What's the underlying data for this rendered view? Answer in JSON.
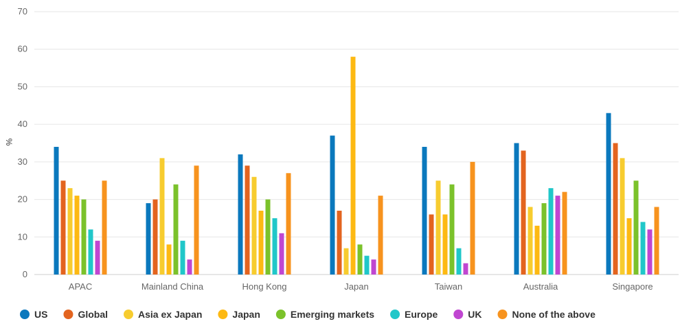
{
  "chart_data": {
    "type": "bar",
    "title": "",
    "xlabel": "",
    "ylabel": "%",
    "ylim": [
      0,
      70
    ],
    "yticks": [
      0,
      10,
      20,
      30,
      40,
      50,
      60,
      70
    ],
    "grid": true,
    "legend_position": "bottom",
    "categories": [
      "APAC",
      "Mainland China",
      "Hong Kong",
      "Japan",
      "Taiwan",
      "Australia",
      "Singapore"
    ],
    "series": [
      {
        "name": "US",
        "color": "#0a78bd",
        "values": [
          34,
          19,
          32,
          37,
          34,
          35,
          43
        ]
      },
      {
        "name": "Global",
        "color": "#e3641f",
        "values": [
          25,
          20,
          29,
          17,
          16,
          33,
          35
        ]
      },
      {
        "name": "Asia ex Japan",
        "color": "#f7cc2f",
        "values": [
          23,
          31,
          26,
          7,
          25,
          18,
          31
        ]
      },
      {
        "name": "Japan",
        "color": "#fdb913",
        "values": [
          21,
          8,
          17,
          58,
          16,
          13,
          15
        ]
      },
      {
        "name": "Emerging markets",
        "color": "#7bc22b",
        "values": [
          20,
          24,
          20,
          8,
          24,
          19,
          25
        ]
      },
      {
        "name": "Europe",
        "color": "#20c7c9",
        "values": [
          12,
          9,
          15,
          5,
          7,
          23,
          14
        ]
      },
      {
        "name": "UK",
        "color": "#c046d1",
        "values": [
          9,
          4,
          11,
          4,
          3,
          21,
          12
        ]
      },
      {
        "name": "None of the above",
        "color": "#f7931e",
        "values": [
          25,
          29,
          27,
          21,
          30,
          22,
          18
        ]
      }
    ]
  }
}
